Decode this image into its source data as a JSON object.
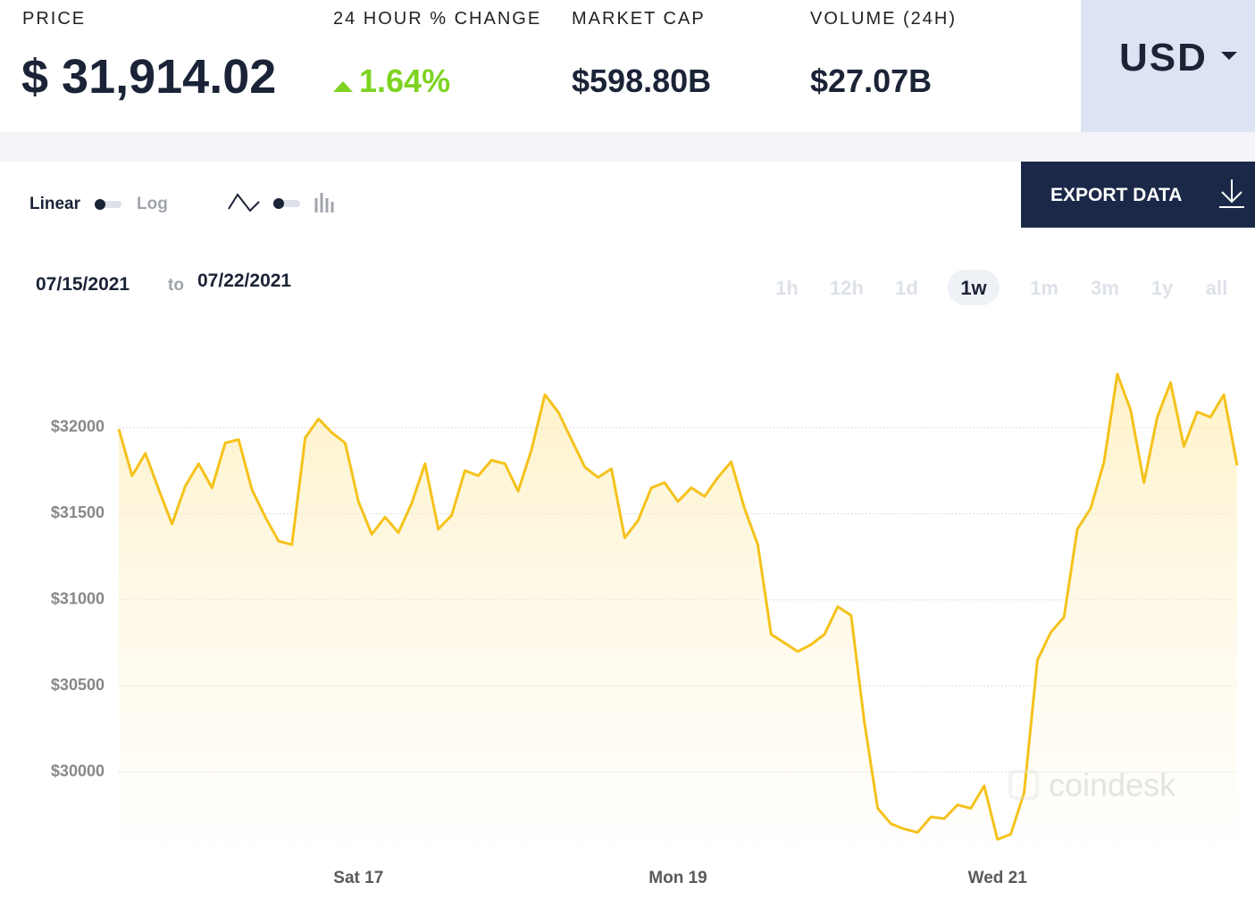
{
  "header": {
    "price_label": "PRICE",
    "price": "$ 31,914.02",
    "change_label": "24 HOUR % CHANGE",
    "change": "1.64%",
    "market_cap_label": "MARKET CAP",
    "market_cap": "$598.80B",
    "volume_label": "VOLUME (24H)",
    "volume": "$27.07B",
    "currency": "USD"
  },
  "controls": {
    "linear": "Linear",
    "log": "Log",
    "export": "EXPORT DATA",
    "date_from": "07/15/2021",
    "date_sep": "to",
    "date_to": "07/22/2021",
    "ranges": [
      "1h",
      "12h",
      "1d",
      "1w",
      "1m",
      "3m",
      "1y",
      "all"
    ],
    "active_range": "1w"
  },
  "watermark": "coindesk",
  "chart_data": {
    "type": "line",
    "color": "#f5c21b",
    "area_fill": true,
    "grid": true,
    "categories": [
      null,
      null,
      null,
      null,
      null,
      null,
      null,
      null,
      null,
      null,
      null,
      null,
      null,
      null,
      null,
      null,
      null,
      null,
      "Sat 17",
      null,
      null,
      null,
      null,
      null,
      null,
      null,
      null,
      null,
      null,
      null,
      null,
      null,
      null,
      null,
      null,
      null,
      null,
      null,
      null,
      null,
      null,
      null,
      "Mon 19",
      null,
      null,
      null,
      null,
      null,
      null,
      null,
      null,
      null,
      null,
      null,
      null,
      null,
      null,
      null,
      null,
      null,
      null,
      null,
      null,
      null,
      null,
      null,
      "Wed 21",
      null,
      null,
      null,
      null,
      null,
      null,
      null,
      null,
      null,
      null,
      null,
      null,
      null,
      null,
      null,
      null,
      null,
      null
    ],
    "values": [
      31990,
      31720,
      31850,
      31640,
      31440,
      31660,
      31790,
      31650,
      31910,
      31930,
      31640,
      31480,
      31340,
      31320,
      31940,
      32050,
      31970,
      31910,
      31570,
      31380,
      31480,
      31390,
      31560,
      31790,
      31410,
      31490,
      31750,
      31720,
      31810,
      31790,
      31630,
      31870,
      32190,
      32090,
      31930,
      31770,
      31710,
      31760,
      31360,
      31460,
      31650,
      31680,
      31570,
      31650,
      31600,
      31710,
      31800,
      31530,
      31320,
      30800,
      30750,
      30700,
      30740,
      30800,
      30960,
      30910,
      30290,
      29790,
      29700,
      29670,
      29650,
      29740,
      29730,
      29810,
      29790,
      29920,
      29610,
      29640,
      29880,
      30650,
      30810,
      30900,
      31410,
      31530,
      31800,
      32310,
      32100,
      31680,
      32060,
      32260,
      31890,
      32090,
      32060,
      32190,
      31780
    ],
    "ylim": [
      29300,
      32600
    ],
    "yticks": [
      {
        "value": 30000,
        "label": "$30000"
      },
      {
        "value": 30500,
        "label": "$30500"
      },
      {
        "value": 31000,
        "label": "$31000"
      },
      {
        "value": 31500,
        "label": "$31500"
      },
      {
        "value": 32000,
        "label": "$32000"
      }
    ]
  }
}
